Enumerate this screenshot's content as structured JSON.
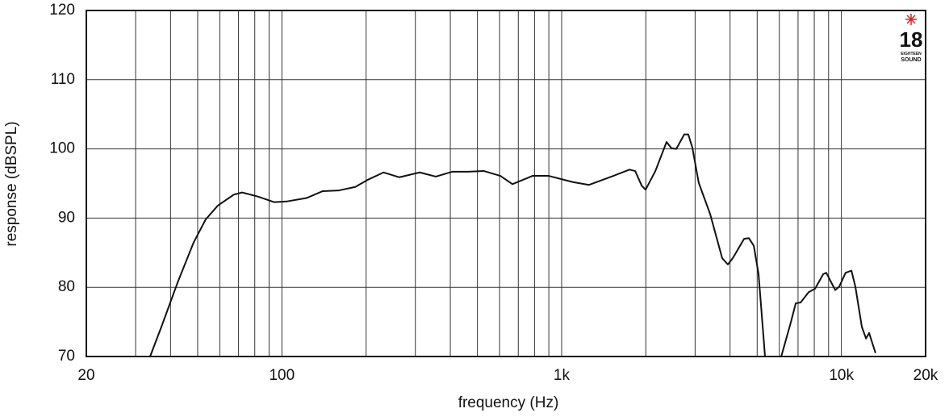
{
  "chart_data": {
    "type": "line",
    "ylabel": "response (dBSPL)",
    "xlabel": "frequency (Hz)",
    "logo": {
      "number": "18",
      "line1": "EIGHTEEN",
      "line2": "SOUND"
    },
    "x_log_scale": true,
    "grid": true,
    "color": "#111111",
    "xlim": [
      20,
      20000
    ],
    "ylim": [
      70,
      120
    ],
    "xticks": [
      20,
      100,
      {
        "value": 1000,
        "label": "1k"
      },
      {
        "value": 10000,
        "label": "10k"
      },
      {
        "value": 20000,
        "label": "20k"
      }
    ],
    "x_minor_grid": [
      30,
      40,
      50,
      60,
      70,
      80,
      90,
      200,
      300,
      400,
      500,
      600,
      700,
      800,
      900,
      2000,
      3000,
      4000,
      5000,
      6000,
      7000,
      8000,
      9000
    ],
    "yticks": [
      70,
      80,
      90,
      100,
      110,
      120
    ],
    "x": [
      33.8,
      37.1,
      42.4,
      48.4,
      53.4,
      59,
      67.4,
      72.1,
      82.3,
      94,
      103.8,
      122.5,
      140,
      160,
      183,
      202,
      231,
      263,
      311,
      355,
      406,
      463,
      528,
      604,
      667,
      787,
      899,
      1097,
      1253,
      1531,
      1748,
      1832,
      1932,
      1996,
      2163,
      2372,
      2468,
      2570,
      2744,
      2836,
      2932,
      3091,
      3394,
      3750,
      3928,
      4090,
      4490,
      4670,
      4863,
      5058,
      5334,
      5700,
      6096,
      6592,
      6871,
      7146,
      7638,
      8054,
      8610,
      8832,
      9506,
      9826,
      10352,
      10864,
      11220,
      11832,
      12248,
      12562,
      13244
    ],
    "values": [
      70,
      74.3,
      80.7,
      86.5,
      89.8,
      91.8,
      93.4,
      93.7,
      93.1,
      92.3,
      92.4,
      92.9,
      93.9,
      94,
      94.5,
      95.5,
      96.6,
      95.9,
      96.6,
      96,
      96.7,
      96.7,
      96.8,
      96.1,
      94.9,
      96.1,
      96.1,
      95.2,
      94.8,
      96.1,
      97,
      96.8,
      94.7,
      94.1,
      96.8,
      101,
      100.1,
      100,
      102.1,
      102.1,
      100.2,
      95.1,
      90.6,
      84.2,
      83.3,
      84.2,
      87,
      87.1,
      86,
      81.9,
      70,
      null,
      70,
      74.9,
      77.7,
      77.8,
      79.3,
      79.8,
      81.9,
      82.1,
      79.6,
      80.1,
      82.1,
      82.4,
      80.1,
      74.3,
      72.6,
      73.4,
      70.5
    ]
  }
}
